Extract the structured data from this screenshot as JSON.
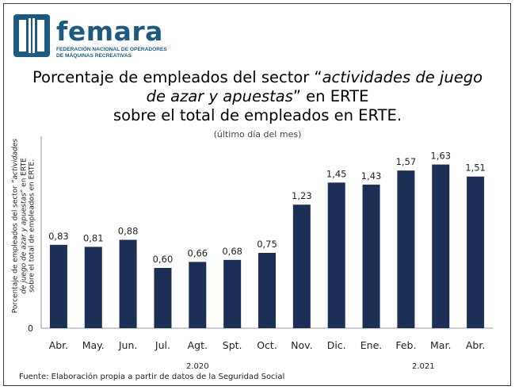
{
  "brand": {
    "name": "femara",
    "subtitle_line1": "FEDERACIÓN NACIONAL DE OPERADORES",
    "subtitle_line2": "DE MÁQUINAS RECREATIVAS"
  },
  "colors": {
    "bar": "#1b2f57",
    "brand": "#1c5a80"
  },
  "chart_data": {
    "type": "bar",
    "title_lines": [
      "Porcentaje de empleados del sector “actividades de juego",
      "de azar y apuestas” en ERTE",
      "sobre el total de empleados en ERTE."
    ],
    "subtitle": "(último día del mes)",
    "ylabel_lines": [
      "Porcentaje de empleados del sector “actividades",
      "de juego de azar y apuestas” en ERTE",
      "sobre el total de empleados en ERTE."
    ],
    "categories": [
      "Abr.",
      "May.",
      "Jun.",
      "Jul.",
      "Agt.",
      "Spt.",
      "Oct.",
      "Nov.",
      "Dic.",
      "Ene.",
      "Feb.",
      "Mar.",
      "Abr."
    ],
    "values": [
      0.83,
      0.81,
      0.88,
      0.6,
      0.66,
      0.68,
      0.75,
      1.23,
      1.45,
      1.43,
      1.57,
      1.63,
      1.51
    ],
    "value_labels": [
      "0,83",
      "0,81",
      "0,88",
      "0,60",
      "0,66",
      "0,68",
      "0,75",
      "1,23",
      "1,45",
      "1,43",
      "1,57",
      "1,63",
      "1,51"
    ],
    "y_tick_labels": [
      "0"
    ],
    "year_groups": [
      {
        "label": "2.020",
        "from": 0,
        "to": 8
      },
      {
        "label": "2.021",
        "from": 9,
        "to": 12
      }
    ],
    "ylim": [
      0,
      1.8
    ],
    "grid": false,
    "legend": "none"
  },
  "source": "Fuente: Elaboración propia a partir de datos de la Seguridad Social"
}
